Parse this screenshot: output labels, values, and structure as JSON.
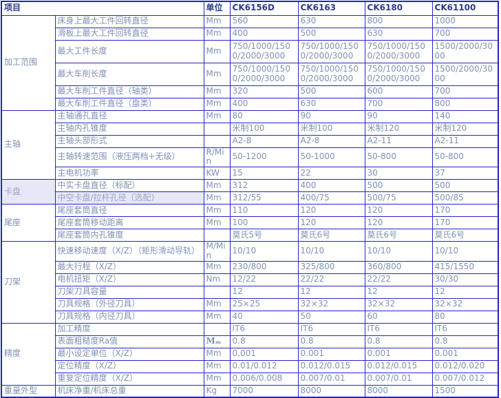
{
  "colors": {
    "border_blue": "#2323c8",
    "header_text": "#2c3a8a",
    "body_text": "#7e91b4",
    "selection_highlight": "#e7e7f8",
    "background": "#ffffff"
  },
  "table": {
    "header": {
      "item": "项目",
      "unit": "单位",
      "models": [
        "CK6156D",
        "CK6163",
        "CK6180",
        "CK61100"
      ]
    },
    "sections": [
      {
        "category": "加工范围",
        "rows": [
          {
            "label": "床身上最大工件回转直径",
            "unit": "Mm",
            "values": [
              "560",
              "630",
              "800",
              "1000"
            ]
          },
          {
            "label": "滑板上最大工件回转直径",
            "unit": "Mm",
            "values": [
              "400",
              "500",
              "630",
              "700"
            ]
          },
          {
            "label": "最大工件长度",
            "unit": "Mm",
            "tall": true,
            "values": [
              "750/1000/1500/2000/3000",
              "750/1000/1500/2000/3000",
              "750/1000/1500/2000/3000",
              "1500/2000/3000"
            ]
          },
          {
            "label": "最大车削长度",
            "unit": "Mm",
            "tall": true,
            "values": [
              "750/1000/1500/2000/3000",
              "750/1000/1500/2000/3000",
              "750/1000/1500/2000/3000",
              "1500/2000/3000"
            ]
          },
          {
            "label": "最大车削工件直径（轴类）",
            "unit": "Mm",
            "values": [
              "320",
              "500",
              "600",
              "700"
            ]
          },
          {
            "label": "最大车削工件直径（盘类）",
            "unit": "Mm",
            "values": [
              "400",
              "630",
              "700",
              "800"
            ]
          }
        ]
      },
      {
        "category": "主轴",
        "rows": [
          {
            "label": "主轴通孔直径",
            "unit": "Mm",
            "values": [
              "80",
              "90",
              "90",
              "140"
            ]
          },
          {
            "label": "主轴内孔锥度",
            "unit": "",
            "values": [
              "米制100",
              "米制100",
              "米制120",
              "米制120"
            ]
          },
          {
            "label": "主轴头部形式",
            "unit": "",
            "values": [
              "A2-8",
              "A2-8",
              "A2-11",
              "A2-11"
            ]
          },
          {
            "label": "主轴转速范围（液压两档+无级）",
            "unit": "R/Min",
            "values": [
              "50-1200",
              "50-1000",
              "50-800",
              "50-800"
            ]
          },
          {
            "label": "主电机功率",
            "unit": "KW",
            "values": [
              "15",
              "22",
              "30",
              "37"
            ]
          }
        ]
      },
      {
        "category": "卡盘",
        "highlight": true,
        "rows": [
          {
            "label": "中实卡盘直径（标配）",
            "unit": "Mm",
            "values": [
              "312",
              "400",
              "500",
              "500"
            ]
          },
          {
            "label": "中空卡盘/拉杆孔径（选配）",
            "unit": "Mm",
            "highlight": true,
            "values": [
              "312/55",
              "400/75",
              "500/75",
              "500/85"
            ]
          }
        ]
      },
      {
        "category": "尾座",
        "rows": [
          {
            "label": "尾座套筒直径",
            "unit": "Mm",
            "values": [
              "110",
              "120",
              "120",
              "170"
            ]
          },
          {
            "label": "尾座套筒移动距离",
            "unit": "Mm",
            "values": [
              "100",
              "120",
              "120",
              "170"
            ]
          },
          {
            "label": "尾座套筒内孔锥度",
            "unit": "",
            "values": [
              "莫氏5号",
              "莫氏6号",
              "莫氏6号",
              "莫氏6号"
            ]
          }
        ]
      },
      {
        "category": "刀架",
        "rows": [
          {
            "label": "快速移动速度（X/Z）（矩形滑动导轨）",
            "unit": "M/Min",
            "values": [
              "10/10",
              "10/10",
              "10/10",
              "10/10"
            ]
          },
          {
            "label": "最大行程（X/Z）",
            "unit": "Mm",
            "values": [
              "230/800",
              "325/800",
              "360/800",
              "415/1550"
            ]
          },
          {
            "label": "电机扭矩（X/Z）",
            "unit": "Nm",
            "values": [
              "12/22",
              "22/22",
              "22/22",
              "30/30"
            ]
          },
          {
            "label": "刀架刀具容量",
            "unit": "",
            "values": [
              "12",
              "12",
              "12",
              "12"
            ]
          },
          {
            "label": "刀具规格（外径刀具）",
            "unit": "Mm",
            "values": [
              "25×25",
              "32×32",
              "32×32",
              "32×32"
            ]
          },
          {
            "label": "刀具规格（内径刀具）",
            "unit": "Mm",
            "values": [
              "40",
              "50",
              "60",
              "80"
            ]
          }
        ]
      },
      {
        "category": "精度",
        "rows": [
          {
            "label": "加工精度",
            "unit": "",
            "values": [
              "IT6",
              "IT6",
              "IT6",
              "IT6"
            ]
          },
          {
            "label": "表面粗糙度Ra值",
            "unit": "Mₘ",
            "values": [
              "0.8",
              "0.8",
              "0.8",
              "0.8"
            ]
          },
          {
            "label": "最小设定单位（X/Z）",
            "unit": "Mm",
            "values": [
              "0.001",
              "0.001",
              "0.001",
              "0.001"
            ]
          },
          {
            "label": "定位精度（X/Z）",
            "unit": "Mm",
            "values": [
              "0.01/0.012",
              "0.012/0.015",
              "0.012/0.015",
              "0.012/0.020"
            ]
          },
          {
            "label": "重复定位精度（X/Z）",
            "unit": "Mm",
            "values": [
              "0.006/0.008",
              "0.007/0.01",
              "0.007/0.01",
              "0.007/0.012"
            ]
          }
        ]
      },
      {
        "category": "重量外型",
        "rows": [
          {
            "label": "机床净重/机床总重",
            "unit": "Kg",
            "values": [
              "7000",
              "8000",
              "8000",
              "1500"
            ]
          }
        ]
      }
    ]
  }
}
